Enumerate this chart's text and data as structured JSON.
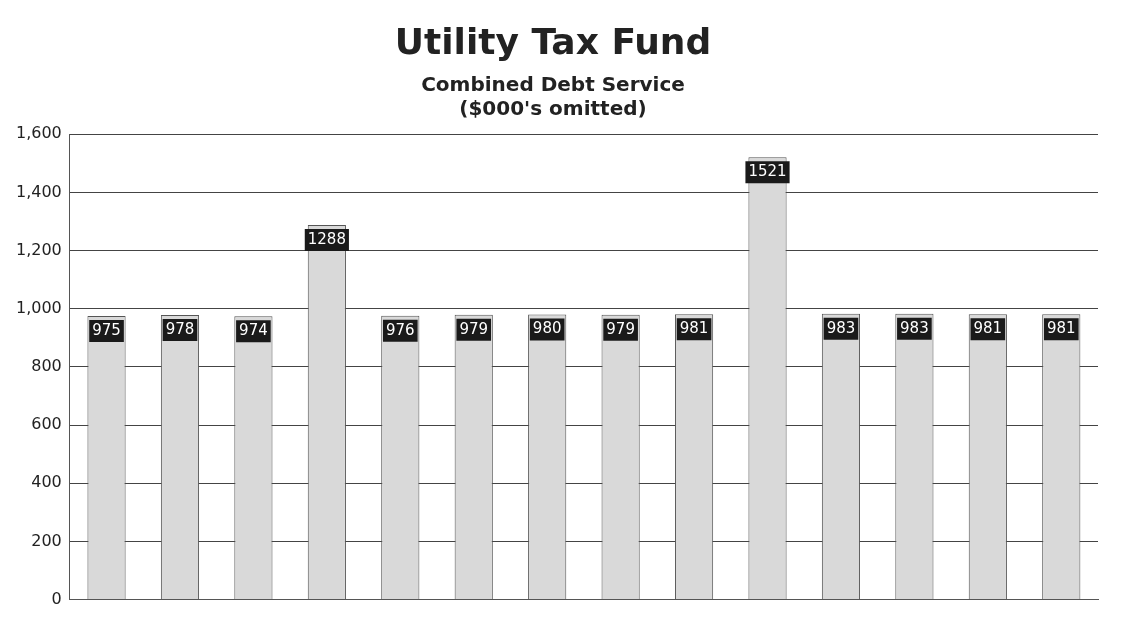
{
  "chart_data": {
    "type": "bar",
    "title": "Utility Tax Fund",
    "subtitle": "Combined Debt Service",
    "annotations": [
      "($000's omitted)"
    ],
    "categories": [
      null,
      null,
      null,
      null,
      null,
      null,
      null,
      null,
      null,
      null,
      null,
      null,
      null,
      null
    ],
    "values": [
      975,
      978,
      974,
      1288,
      976,
      979,
      980,
      979,
      981,
      1521,
      983,
      983,
      981,
      981
    ],
    "color": "#d9d9d9",
    "data_labels": true,
    "grid": "y",
    "legend": false,
    "ylim": [
      0,
      1600
    ],
    "yticks": [
      0,
      200,
      400,
      600,
      800,
      {
        "value": 1000,
        "label": "1,000"
      },
      {
        "value": 1200,
        "label": "1,200"
      },
      {
        "value": 1400,
        "label": "1,400"
      },
      {
        "value": 1600,
        "label": "1,600"
      }
    ]
  }
}
